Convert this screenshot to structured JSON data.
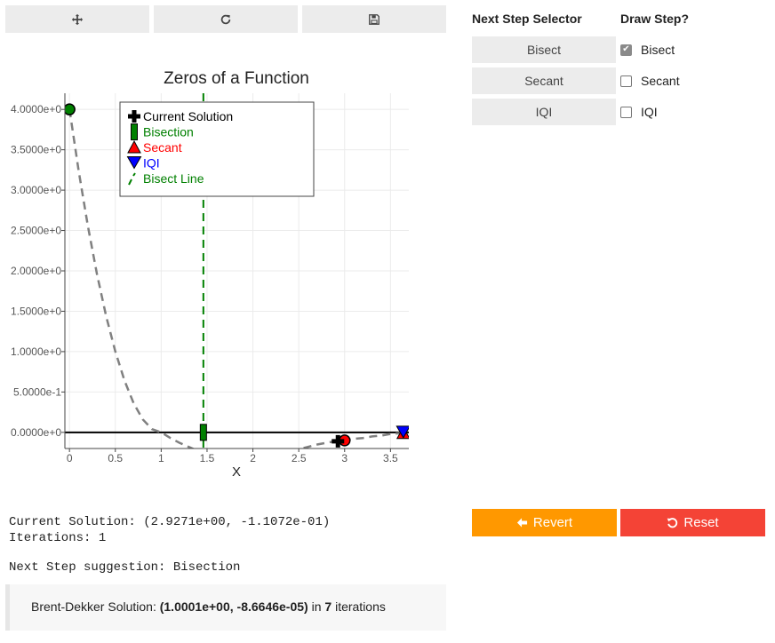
{
  "toolbar": {
    "buttons": [
      {
        "icon": "move-icon"
      },
      {
        "icon": "refresh-icon"
      },
      {
        "icon": "save-icon"
      }
    ]
  },
  "chart_data": {
    "type": "line",
    "title": "Zeros of a Function",
    "xlabel": "X",
    "ylabel": "",
    "xlim": [
      -0.05,
      3.7
    ],
    "ylim": [
      -0.2,
      4.2
    ],
    "xticks": [
      0,
      0.5,
      1,
      1.5,
      2,
      2.5,
      3,
      3.5
    ],
    "xtick_labels": [
      "0",
      "0.5",
      "1",
      "1.5",
      "2",
      "2.5",
      "3",
      "3.5"
    ],
    "yticks": [
      0,
      0.5,
      1,
      1.5,
      2,
      2.5,
      3,
      3.5,
      4
    ],
    "ytick_labels": [
      "0.0000e+0",
      "5.0000e-1",
      "1.0000e+0",
      "1.5000e+0",
      "2.0000e+0",
      "2.5000e+0",
      "3.0000e+0",
      "3.5000e+0",
      "4.0000e+0"
    ],
    "grid": true,
    "legend_position": "top-left",
    "function_curve": {
      "x": [
        0,
        0.1,
        0.2,
        0.3,
        0.4,
        0.5,
        0.6,
        0.7,
        0.8,
        0.9,
        1.0,
        1.1,
        1.2,
        1.3,
        1.4,
        1.5,
        1.6,
        1.7,
        1.8,
        1.9,
        2.0,
        2.1,
        2.2,
        2.3,
        2.4,
        2.5,
        2.6,
        2.7,
        2.8,
        2.9,
        3.0,
        3.1,
        3.2,
        3.3,
        3.4,
        3.5,
        3.6,
        3.7
      ],
      "y": [
        4.0,
        3.24,
        2.56,
        1.96,
        1.44,
        1.0,
        0.64,
        0.36,
        0.16,
        0.04,
        0.0,
        -0.07,
        -0.13,
        -0.18,
        -0.23,
        -0.27,
        -0.3,
        -0.32,
        -0.34,
        -0.35,
        -0.35,
        -0.34,
        -0.32,
        -0.29,
        -0.25,
        -0.21,
        -0.18,
        -0.15,
        -0.13,
        -0.11,
        -0.1,
        -0.08,
        -0.07,
        -0.05,
        -0.04,
        -0.02,
        -0.01,
        -0.005
      ],
      "color": "#808080"
    },
    "zero_line": {
      "y": 0,
      "color": "#000000"
    },
    "bisect_line": {
      "x": 1.46,
      "color": "#008000"
    },
    "series": [
      {
        "name": "Current Solution",
        "marker": "cross",
        "color": "#000000",
        "x": [
          2.9271
        ],
        "y": [
          -0.11072
        ]
      },
      {
        "name": "Bisection",
        "marker": "bar",
        "color": "#008000",
        "x": [
          1.46
        ],
        "y": [
          0
        ]
      },
      {
        "name": "Secant",
        "marker": "triangle-up",
        "color": "#ff0000",
        "x": [
          3.64
        ],
        "y": [
          -0.01
        ]
      },
      {
        "name": "IQI",
        "marker": "triangle-down",
        "color": "#0000ff",
        "x": [
          3.64
        ],
        "y": [
          0
        ]
      },
      {
        "name": "Bisect Line",
        "marker": "dashed-line",
        "color": "#008000"
      }
    ],
    "extra_points": [
      {
        "x": 0,
        "y": 4.0,
        "color": "#008000"
      },
      {
        "x": 3.0,
        "y": -0.1,
        "color": "#ff0000"
      }
    ]
  },
  "status": {
    "current_solution": "Current Solution: (2.9271e+00, -1.1072e-01)",
    "iterations": "Iterations: 1",
    "next_step": "Next Step suggestion: Bisection",
    "brent_prefix": "Brent-Dekker Solution: ",
    "brent_value": "(1.0001e+00, -8.6646e-05)",
    "brent_mid": " in ",
    "brent_iters": "7",
    "brent_suffix": " iterations"
  },
  "selector": {
    "heading": "Next Step Selector",
    "buttons": [
      "Bisect",
      "Secant",
      "IQI"
    ]
  },
  "draw_step": {
    "heading": "Draw Step?",
    "options": [
      {
        "label": "Bisect",
        "checked": true
      },
      {
        "label": "Secant",
        "checked": false
      },
      {
        "label": "IQI",
        "checked": false
      }
    ]
  },
  "actions": {
    "revert_label": "Revert",
    "reset_label": "Reset"
  }
}
